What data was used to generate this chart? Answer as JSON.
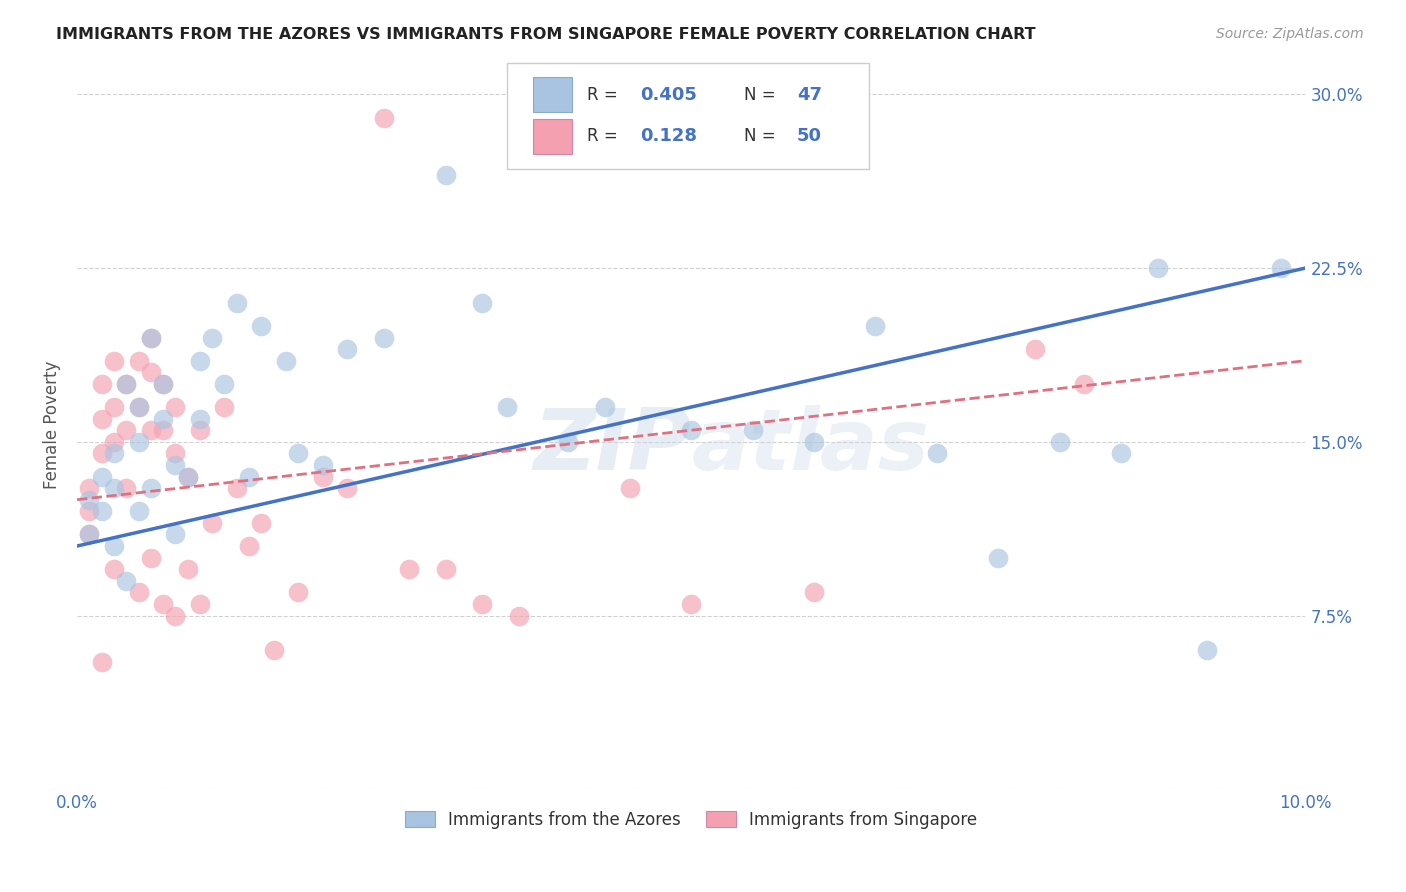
{
  "title": "IMMIGRANTS FROM THE AZORES VS IMMIGRANTS FROM SINGAPORE FEMALE POVERTY CORRELATION CHART",
  "source": "Source: ZipAtlas.com",
  "ylabel": "Female Poverty",
  "xlim": [
    0.0,
    0.1
  ],
  "ylim": [
    0.0,
    0.315
  ],
  "xticks": [
    0.0,
    0.025,
    0.05,
    0.075,
    0.1
  ],
  "xtick_labels": [
    "0.0%",
    "",
    "",
    "",
    "10.0%"
  ],
  "ytick_positions": [
    0.0,
    0.075,
    0.15,
    0.225,
    0.3
  ],
  "ytick_labels": [
    "",
    "7.5%",
    "15.0%",
    "22.5%",
    "30.0%"
  ],
  "color_blue": "#a8c4e0",
  "color_pink": "#f4a0b0",
  "line_blue": "#4472c4",
  "line_pink": "#e07080",
  "watermark": "ZIPAtlas",
  "azores_x": [
    0.001,
    0.001,
    0.002,
    0.002,
    0.003,
    0.003,
    0.003,
    0.004,
    0.004,
    0.005,
    0.005,
    0.005,
    0.006,
    0.006,
    0.007,
    0.007,
    0.008,
    0.008,
    0.009,
    0.01,
    0.01,
    0.011,
    0.012,
    0.013,
    0.014,
    0.015,
    0.017,
    0.018,
    0.02,
    0.022,
    0.025,
    0.03,
    0.033,
    0.035,
    0.04,
    0.043,
    0.05,
    0.055,
    0.06,
    0.065,
    0.07,
    0.075,
    0.08,
    0.085,
    0.088,
    0.092,
    0.098
  ],
  "azores_y": [
    0.125,
    0.11,
    0.135,
    0.12,
    0.145,
    0.13,
    0.105,
    0.175,
    0.09,
    0.165,
    0.15,
    0.12,
    0.195,
    0.13,
    0.175,
    0.16,
    0.14,
    0.11,
    0.135,
    0.185,
    0.16,
    0.195,
    0.175,
    0.21,
    0.135,
    0.2,
    0.185,
    0.145,
    0.14,
    0.19,
    0.195,
    0.265,
    0.21,
    0.165,
    0.15,
    0.165,
    0.155,
    0.155,
    0.15,
    0.2,
    0.145,
    0.1,
    0.15,
    0.145,
    0.225,
    0.06,
    0.225
  ],
  "singapore_x": [
    0.001,
    0.001,
    0.001,
    0.002,
    0.002,
    0.002,
    0.002,
    0.003,
    0.003,
    0.003,
    0.003,
    0.004,
    0.004,
    0.004,
    0.005,
    0.005,
    0.005,
    0.006,
    0.006,
    0.006,
    0.006,
    0.007,
    0.007,
    0.007,
    0.008,
    0.008,
    0.008,
    0.009,
    0.009,
    0.01,
    0.01,
    0.011,
    0.012,
    0.013,
    0.014,
    0.015,
    0.016,
    0.018,
    0.02,
    0.022,
    0.025,
    0.027,
    0.03,
    0.033,
    0.036,
    0.045,
    0.05,
    0.06,
    0.078,
    0.082
  ],
  "singapore_y": [
    0.13,
    0.12,
    0.11,
    0.175,
    0.16,
    0.145,
    0.055,
    0.185,
    0.165,
    0.15,
    0.095,
    0.175,
    0.155,
    0.13,
    0.185,
    0.165,
    0.085,
    0.195,
    0.18,
    0.155,
    0.1,
    0.175,
    0.155,
    0.08,
    0.165,
    0.145,
    0.075,
    0.135,
    0.095,
    0.155,
    0.08,
    0.115,
    0.165,
    0.13,
    0.105,
    0.115,
    0.06,
    0.085,
    0.135,
    0.13,
    0.29,
    0.095,
    0.095,
    0.08,
    0.075,
    0.13,
    0.08,
    0.085,
    0.19,
    0.175
  ],
  "trend_blue_x0": 0.0,
  "trend_blue_y0": 0.105,
  "trend_blue_x1": 0.1,
  "trend_blue_y1": 0.225,
  "trend_pink_x0": 0.0,
  "trend_pink_y0": 0.125,
  "trend_pink_x1": 0.1,
  "trend_pink_y1": 0.185
}
